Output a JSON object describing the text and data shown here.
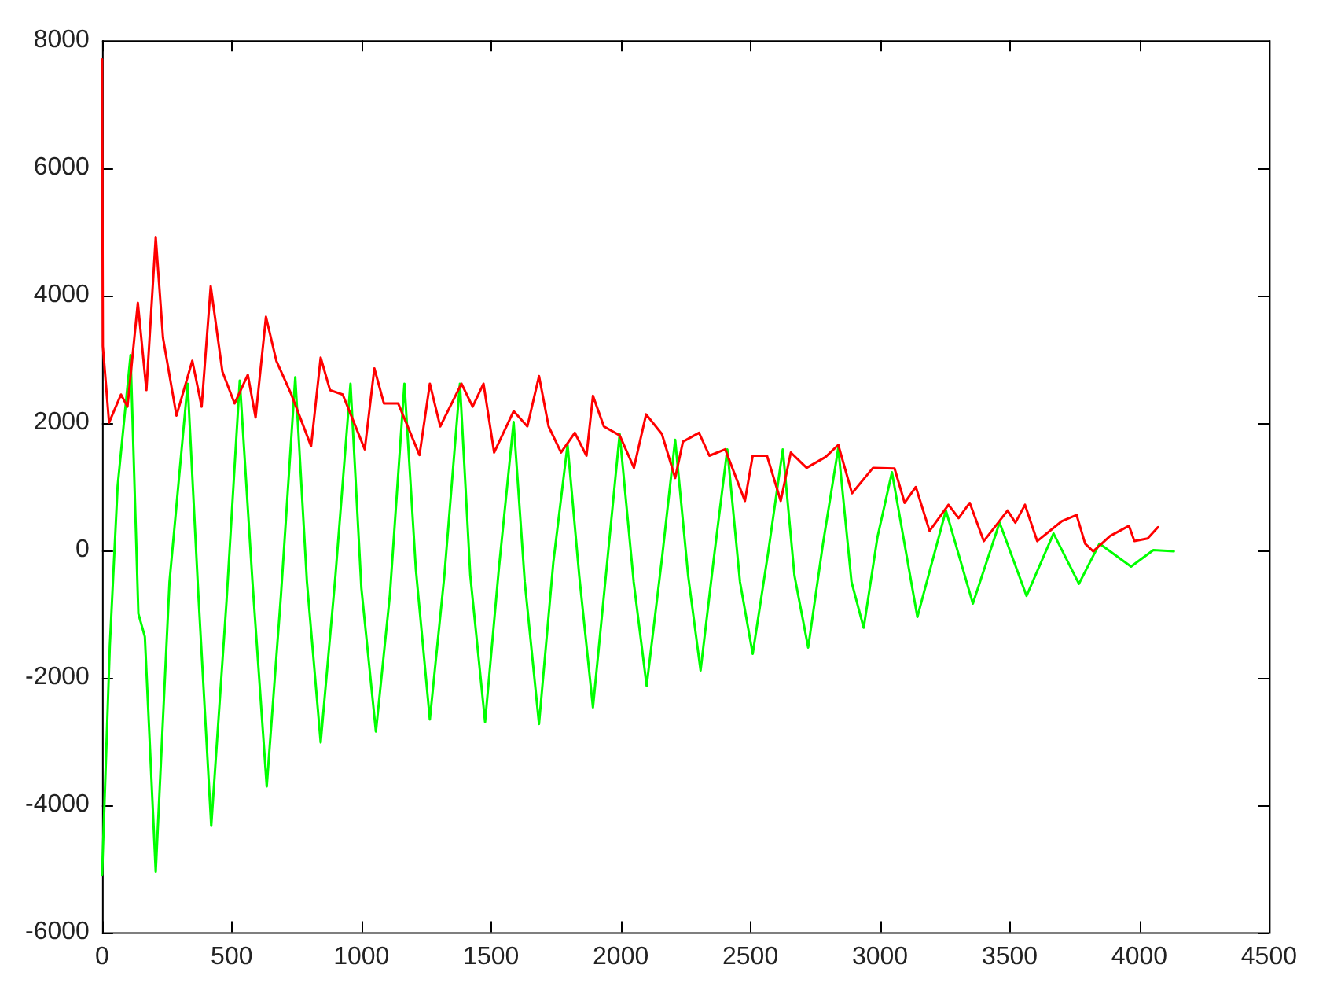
{
  "chart_data": {
    "type": "line",
    "xlim": [
      0,
      4500
    ],
    "xticks": [
      0,
      500,
      1000,
      1500,
      2000,
      2500,
      3000,
      3500,
      4000,
      4500
    ],
    "ylim": [
      -6000,
      8000
    ],
    "yticks": [
      -6000,
      -4000,
      -2000,
      0,
      2000,
      4000,
      6000,
      8000
    ],
    "grid": false,
    "legend": false,
    "marker": "none",
    "line_style": "solid",
    "series": [
      {
        "color": "#ff0000",
        "x": [
          0,
          3,
          27,
          73,
          98,
          138,
          171,
          207,
          235,
          287,
          348,
          384,
          419,
          464,
          511,
          562,
          592,
          632,
          672,
          730,
          806,
          843,
          879,
          928,
          1013,
          1050,
          1087,
          1142,
          1224,
          1264,
          1304,
          1386,
          1429,
          1471,
          1512,
          1587,
          1640,
          1685,
          1722,
          1770,
          1823,
          1868,
          1893,
          1935,
          1996,
          2051,
          2098,
          2159,
          2210,
          2240,
          2302,
          2342,
          2403,
          2479,
          2509,
          2564,
          2617,
          2656,
          2717,
          2790,
          2839,
          2892,
          2973,
          3056,
          3095,
          3138,
          3191,
          3264,
          3303,
          3346,
          3400,
          3492,
          3522,
          3559,
          3606,
          3700,
          3758,
          3791,
          3822,
          3887,
          3960,
          3981,
          4032,
          4072
        ],
        "values": [
          7700,
          3200,
          2000,
          2440,
          2250,
          3880,
          2510,
          4910,
          3330,
          2110,
          2970,
          2250,
          4140,
          2800,
          2300,
          2750,
          2080,
          3660,
          2970,
          2440,
          1630,
          3020,
          2510,
          2440,
          1580,
          2850,
          2300,
          2300,
          1490,
          2610,
          1940,
          2610,
          2250,
          2610,
          1530,
          2180,
          1940,
          2730,
          1940,
          1530,
          1840,
          1480,
          2420,
          1940,
          1800,
          1290,
          2130,
          1820,
          1130,
          1700,
          1840,
          1480,
          1580,
          770,
          1480,
          1480,
          770,
          1530,
          1290,
          1460,
          1650,
          890,
          1290,
          1280,
          740,
          990,
          300,
          710,
          500,
          740,
          140,
          620,
          430,
          710,
          140,
          450,
          550,
          100,
          -20,
          220,
          380,
          140,
          180,
          360
        ]
      },
      {
        "color": "#00ff00",
        "x": [
          0,
          30,
          60,
          110,
          140,
          165,
          207,
          260,
          330,
          370,
          421,
          480,
          531,
          580,
          635,
          690,
          745,
          790,
          843,
          900,
          958,
          1000,
          1056,
          1110,
          1166,
          1210,
          1264,
          1320,
          1380,
          1420,
          1477,
          1530,
          1587,
          1630,
          1685,
          1740,
          1795,
          1840,
          1893,
          1950,
          1996,
          2050,
          2100,
          2160,
          2210,
          2260,
          2308,
          2360,
          2411,
          2460,
          2509,
          2570,
          2625,
          2670,
          2723,
          2780,
          2839,
          2890,
          2937,
          2990,
          3046,
          3144,
          3254,
          3358,
          3461,
          3565,
          3669,
          3767,
          3846,
          3968,
          4054,
          4133
        ],
        "values": [
          -5100,
          -1500,
          1000,
          3060,
          -1000,
          -1360,
          -5050,
          -500,
          2610,
          -600,
          -4330,
          -800,
          2660,
          -500,
          -3710,
          -700,
          2710,
          -500,
          -3020,
          -400,
          2610,
          -600,
          -2850,
          -700,
          2610,
          -300,
          -2660,
          -400,
          2610,
          -400,
          -2700,
          -300,
          2010,
          -500,
          -2730,
          -200,
          1650,
          -400,
          -2470,
          -100,
          1820,
          -500,
          -2130,
          -100,
          1730,
          -400,
          -1890,
          -100,
          1580,
          -500,
          -1630,
          0,
          1580,
          -400,
          -1530,
          100,
          1600,
          -500,
          -1220,
          200,
          1220,
          -1050,
          620,
          -840,
          430,
          -720,
          260,
          -530,
          100,
          -260,
          0,
          -20
        ]
      }
    ]
  }
}
